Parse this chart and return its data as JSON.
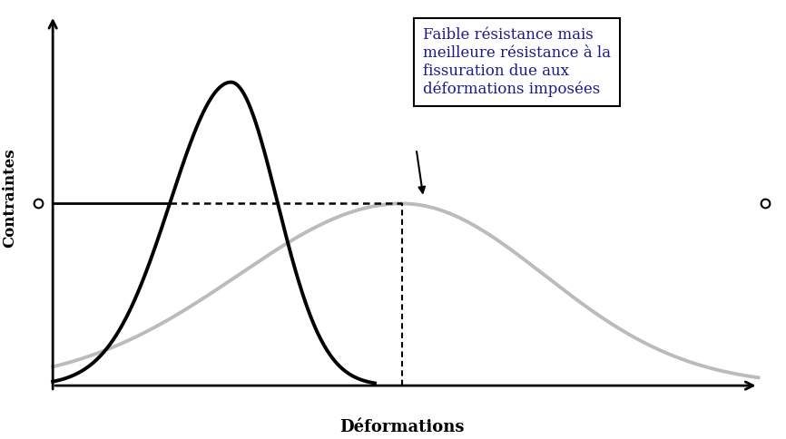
{
  "xlabel": "Déformations",
  "ylabel": "Contraintes",
  "background_color": "#ffffff",
  "annotation_text": "Faible résistance mais\nmeilleure résistance à la\nfissuration due aux\ndéformations imposées",
  "annotation_fontsize": 12,
  "xlabel_fontsize": 13,
  "ylabel_fontsize": 12,
  "curve1_color": "#000000",
  "curve2_color": "#bbbbbb",
  "hline_color": "#000000",
  "dashed_color": "#000000",
  "curve1_peak_x": 0.28,
  "curve1_peak_y": 1.0,
  "curve2_peak_x": 0.52,
  "curve2_peak_y": 0.6,
  "hline_y": 0.6,
  "vline_x": 0.52,
  "xlim": [
    0.0,
    1.05
  ],
  "ylim": [
    -0.05,
    1.25
  ],
  "annotation_color": "#1a1a8c"
}
